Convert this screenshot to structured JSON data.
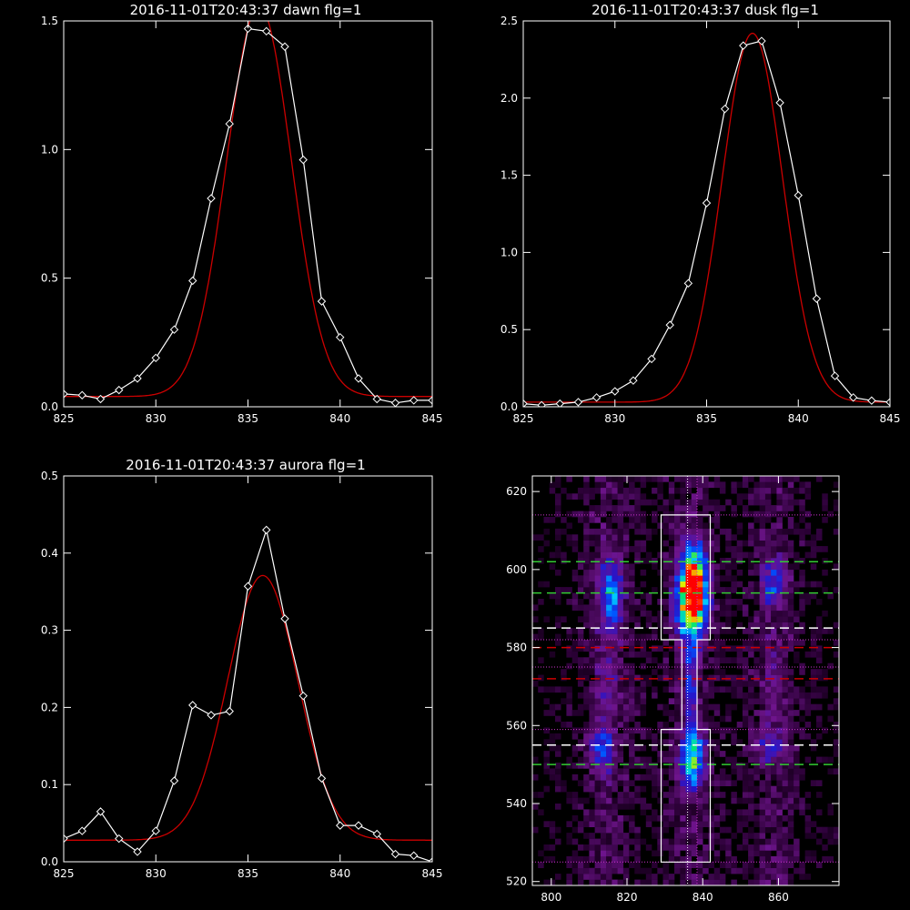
{
  "chart_data": [
    {
      "type": "line",
      "title": "2016-11-01T20:43:37 dawn flg=1",
      "xlim": [
        825,
        845
      ],
      "ylim": [
        0,
        1.5
      ],
      "xticks": [
        "825",
        "830",
        "835",
        "840",
        "845"
      ],
      "yticks": [
        "0.0",
        "0.5",
        "1.0",
        "1.5"
      ],
      "series": [
        {
          "color": "#ffffff",
          "marker": "diamond",
          "x": [
            825,
            826,
            827,
            828,
            829,
            830,
            831,
            832,
            833,
            834,
            835,
            836,
            837,
            838,
            839,
            840,
            841,
            842,
            843,
            844,
            845
          ],
          "y": [
            0.05,
            0.045,
            0.03,
            0.065,
            0.11,
            0.19,
            0.3,
            0.49,
            0.81,
            1.1,
            1.47,
            1.46,
            1.4,
            0.96,
            0.41,
            0.27,
            0.11,
            0.03,
            0.015,
            0.025,
            0.025
          ]
        },
        {
          "color": "#cc0000",
          "fit": "gaussian",
          "peak": 1.52,
          "center": 835.6,
          "sigma": 1.75,
          "base": 0.04
        }
      ]
    },
    {
      "type": "line",
      "title": "2016-11-01T20:43:37 dusk flg=1",
      "xlim": [
        825,
        845
      ],
      "ylim": [
        0,
        2.5
      ],
      "xticks": [
        "825",
        "830",
        "835",
        "840",
        "845"
      ],
      "yticks": [
        "0.0",
        "0.5",
        "1.0",
        "1.5",
        "2.0",
        "2.5"
      ],
      "series": [
        {
          "color": "#ffffff",
          "marker": "diamond",
          "x": [
            825,
            826,
            827,
            828,
            829,
            830,
            831,
            832,
            833,
            834,
            835,
            836,
            837,
            838,
            839,
            840,
            841,
            842,
            843,
            844,
            845
          ],
          "y": [
            0.02,
            0.01,
            0.02,
            0.03,
            0.06,
            0.1,
            0.17,
            0.31,
            0.53,
            0.8,
            1.32,
            1.93,
            2.34,
            2.37,
            1.97,
            1.37,
            0.7,
            0.2,
            0.06,
            0.04,
            0.03
          ]
        },
        {
          "color": "#cc0000",
          "fit": "gaussian",
          "peak": 2.39,
          "center": 837.5,
          "sigma": 1.65,
          "base": 0.03
        }
      ]
    },
    {
      "type": "line",
      "title": "2016-11-01T20:43:37 aurora flg=1",
      "xlim": [
        825,
        845
      ],
      "ylim": [
        0,
        0.5
      ],
      "xticks": [
        "825",
        "830",
        "835",
        "840",
        "845"
      ],
      "yticks": [
        "0.0",
        "0.1",
        "0.2",
        "0.3",
        "0.4",
        "0.5"
      ],
      "series": [
        {
          "color": "#ffffff",
          "marker": "diamond",
          "x": [
            825,
            826,
            827,
            828,
            829,
            830,
            831,
            832,
            833,
            834,
            835,
            836,
            837,
            838,
            839,
            840,
            841,
            842,
            843,
            844,
            845
          ],
          "y": [
            0.03,
            0.04,
            0.065,
            0.03,
            0.013,
            0.04,
            0.105,
            0.203,
            0.19,
            0.195,
            0.357,
            0.43,
            0.315,
            0.215,
            0.108,
            0.047,
            0.047,
            0.036,
            0.01,
            0.008,
            0.0
          ]
        },
        {
          "color": "#cc0000",
          "fit": "gaussian",
          "peak": 0.343,
          "center": 835.8,
          "sigma": 1.9,
          "base": 0.028
        }
      ]
    },
    {
      "type": "heatmap",
      "title": "",
      "xlim": [
        795,
        876
      ],
      "ylim": [
        519,
        624
      ],
      "xticks": [
        "800",
        "820",
        "840",
        "860"
      ],
      "yticks": [
        "520",
        "540",
        "560",
        "580",
        "600",
        "620"
      ],
      "colormap": "rainbow",
      "blobs": [
        {
          "x": 837,
          "y": 595,
          "sx": 2.2,
          "sy": 6,
          "amp": 1.0
        },
        {
          "x": 836,
          "y": 590,
          "sx": 2.5,
          "sy": 7,
          "amp": 0.55
        },
        {
          "x": 836.5,
          "y": 551,
          "sx": 2.0,
          "sy": 5,
          "amp": 0.62
        },
        {
          "x": 836,
          "y": 568,
          "sx": 1.0,
          "sy": 8,
          "amp": 0.28
        },
        {
          "x": 815,
          "y": 593,
          "sx": 2.0,
          "sy": 6,
          "amp": 0.42
        },
        {
          "x": 813,
          "y": 553,
          "sx": 2.0,
          "sy": 4,
          "amp": 0.3
        },
        {
          "x": 814,
          "y": 570,
          "sx": 2.0,
          "sy": 7,
          "amp": 0.12
        },
        {
          "x": 858,
          "y": 596,
          "sx": 2.2,
          "sy": 4,
          "amp": 0.28
        },
        {
          "x": 857,
          "y": 554,
          "sx": 3.0,
          "sy": 3,
          "amp": 0.18
        },
        {
          "x": 858,
          "y": 570,
          "sx": 2.5,
          "sy": 9,
          "amp": 0.07
        }
      ],
      "hlines": [
        {
          "y": 602,
          "color": "#33cc33",
          "dash": "long"
        },
        {
          "y": 594,
          "color": "#33cc33",
          "dash": "long"
        },
        {
          "y": 585,
          "color": "#ffffff",
          "dash": "long"
        },
        {
          "y": 580,
          "color": "#cc0000",
          "dash": "long"
        },
        {
          "y": 572,
          "color": "#cc0000",
          "dash": "long"
        },
        {
          "y": 555,
          "color": "#ffffff",
          "dash": "long"
        },
        {
          "y": 550,
          "color": "#33cc33",
          "dash": "long"
        },
        {
          "y": 614,
          "color": "#cc33cc",
          "dash": "dot"
        },
        {
          "y": 582,
          "color": "#cc33cc",
          "dash": "dot"
        },
        {
          "y": 575,
          "color": "#cc33cc",
          "dash": "dot"
        },
        {
          "y": 559,
          "color": "#cc33cc",
          "dash": "dot"
        },
        {
          "y": 525,
          "color": "#cc33cc",
          "dash": "dot"
        }
      ],
      "vlines": [
        {
          "x": 836,
          "color": "#ffffff",
          "dash": "dot"
        },
        {
          "x": 838.5,
          "color": "#cc33cc",
          "dash": "dot"
        }
      ],
      "box_outline": [
        [
          829,
          614
        ],
        [
          842,
          614
        ],
        [
          842,
          582
        ],
        [
          838.5,
          582
        ],
        [
          838.5,
          559
        ],
        [
          842,
          559
        ],
        [
          842,
          525
        ],
        [
          829,
          525
        ],
        [
          829,
          559
        ],
        [
          834.5,
          559
        ],
        [
          834.5,
          582
        ],
        [
          829,
          582
        ]
      ]
    }
  ]
}
